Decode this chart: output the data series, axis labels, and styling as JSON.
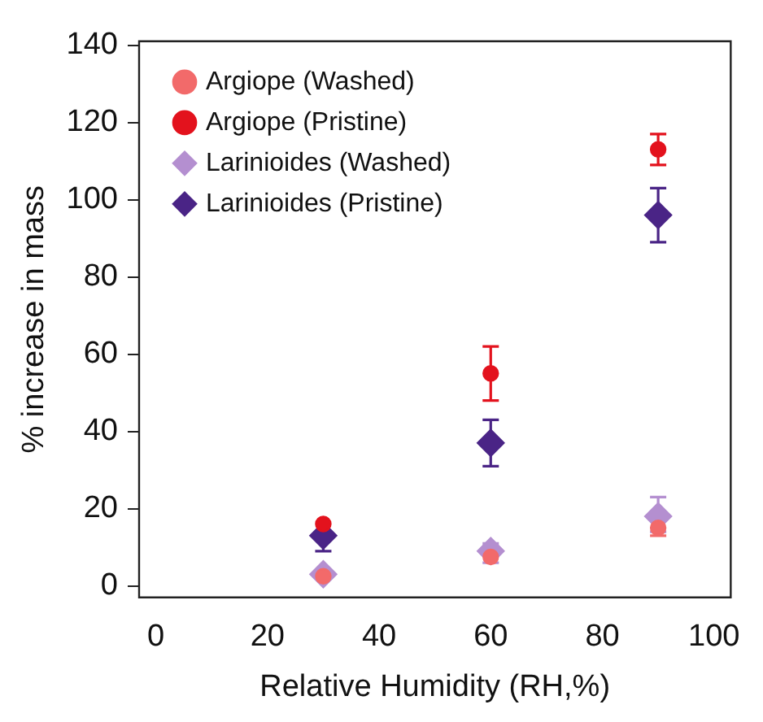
{
  "chart_data": {
    "type": "scatter",
    "xlabel": "Relative Humidity (RH,%)",
    "ylabel": "% increase in mass",
    "xlim": [
      -3,
      103
    ],
    "xticks": [
      0,
      20,
      40,
      60,
      80,
      100
    ],
    "ylim": [
      -3,
      141
    ],
    "yticks": [
      0,
      20,
      40,
      60,
      80,
      100,
      120,
      140
    ],
    "grid": false,
    "legend": "top left",
    "series": [
      {
        "name": "Argiope (Washed)",
        "color": "#f26a6a",
        "marker": "circle",
        "x": [
          30,
          60,
          90
        ],
        "values": [
          2.5,
          7.5,
          15
        ],
        "errors": [
          null,
          null,
          [
            13,
            17
          ]
        ]
      },
      {
        "name": "Argiope (Pristine)",
        "color": "#e3121d",
        "marker": "circle",
        "x": [
          30,
          60,
          90
        ],
        "values": [
          16,
          55,
          113
        ],
        "errors": [
          null,
          [
            48,
            62
          ],
          [
            109,
            117
          ]
        ]
      },
      {
        "name": "Larinioides (Washed)",
        "color": "#b48fd0",
        "marker": "diamond",
        "x": [
          30,
          60,
          90
        ],
        "values": [
          3,
          9,
          18
        ],
        "errors": [
          null,
          [
            6,
            11
          ],
          [
            14,
            23
          ]
        ]
      },
      {
        "name": "Larinioides (Pristine)",
        "color": "#4a2486",
        "marker": "diamond",
        "x": [
          30,
          60,
          90
        ],
        "values": [
          13,
          37,
          96
        ],
        "errors": [
          [
            9,
            13
          ],
          [
            31,
            43
          ],
          [
            89,
            103
          ]
        ]
      }
    ]
  }
}
